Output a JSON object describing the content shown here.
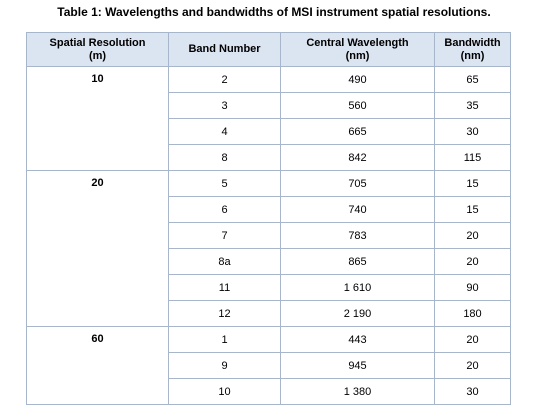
{
  "caption": "Table 1: Wavelengths and bandwidths of MSI instrument spatial resolutions.",
  "header": {
    "resolution_line1": "Spatial Resolution",
    "resolution_line2": "(m)",
    "band": "Band Number",
    "wavelength_line1": "Central Wavelength",
    "wavelength_line2": "(nm)",
    "bandwidth_line1": "Bandwidth",
    "bandwidth_line2": "(nm)"
  },
  "groups": [
    {
      "resolution": "10",
      "rows": [
        {
          "band": "2",
          "wavelength": "490",
          "bandwidth": "65"
        },
        {
          "band": "3",
          "wavelength": "560",
          "bandwidth": "35"
        },
        {
          "band": "4",
          "wavelength": "665",
          "bandwidth": "30"
        },
        {
          "band": "8",
          "wavelength": "842",
          "bandwidth": "115"
        }
      ]
    },
    {
      "resolution": "20",
      "rows": [
        {
          "band": "5",
          "wavelength": "705",
          "bandwidth": "15"
        },
        {
          "band": "6",
          "wavelength": "740",
          "bandwidth": "15"
        },
        {
          "band": "7",
          "wavelength": "783",
          "bandwidth": "20"
        },
        {
          "band": "8a",
          "wavelength": "865",
          "bandwidth": "20"
        },
        {
          "band": "11",
          "wavelength": "1 610",
          "bandwidth": "90"
        },
        {
          "band": "12",
          "wavelength": "2 190",
          "bandwidth": "180"
        }
      ]
    },
    {
      "resolution": "60",
      "rows": [
        {
          "band": "1",
          "wavelength": "443",
          "bandwidth": "20"
        },
        {
          "band": "9",
          "wavelength": "945",
          "bandwidth": "20"
        },
        {
          "band": "10",
          "wavelength": "1 380",
          "bandwidth": "30"
        }
      ]
    }
  ]
}
